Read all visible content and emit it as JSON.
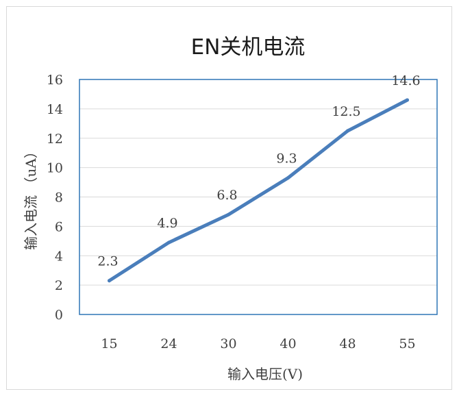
{
  "chart_data": {
    "type": "line",
    "title": "EN关机电流",
    "xlabel": "输入电压(V)",
    "ylabel": "输入电流 （uA）",
    "categories": [
      "15",
      "24",
      "30",
      "40",
      "48",
      "55"
    ],
    "series": [
      {
        "values": [
          2.3,
          4.9,
          6.8,
          9.3,
          12.5,
          14.6
        ],
        "color": "#4a7ebb"
      }
    ],
    "data_labels": [
      "2.3",
      "4.9",
      "6.8",
      "9.3",
      "12.5",
      "14.6"
    ],
    "ylim": [
      0,
      16
    ],
    "yticks": [
      "0",
      "2",
      "4",
      "6",
      "8",
      "10",
      "12",
      "14",
      "16"
    ],
    "grid": true,
    "legend": "none",
    "plot_border_color": "#2e75b6"
  }
}
